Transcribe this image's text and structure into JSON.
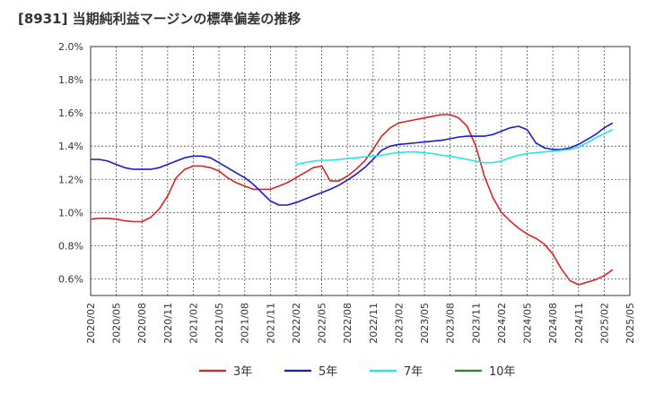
{
  "chart_data": {
    "type": "line",
    "title": "[8931]  当期純利益マージンの標準偏差の推移",
    "xlabel": "",
    "ylabel": "",
    "x_ticks": [
      "2020/02",
      "2020/05",
      "2020/08",
      "2020/11",
      "2021/02",
      "2021/05",
      "2021/08",
      "2021/11",
      "2022/02",
      "2022/05",
      "2022/08",
      "2022/11",
      "2023/02",
      "2023/05",
      "2023/08",
      "2023/11",
      "2024/02",
      "2024/05",
      "2024/08",
      "2024/11",
      "2025/02",
      "2025/05"
    ],
    "y_ticks": [
      "2.0%",
      "1.8%",
      "1.6%",
      "1.4%",
      "1.2%",
      "1.0%",
      "0.8%",
      "0.6%"
    ],
    "y_tick_values": [
      2.0,
      1.8,
      1.6,
      1.4,
      1.2,
      1.0,
      0.8,
      0.6
    ],
    "ylim": [
      0.5,
      2.0
    ],
    "x_start": "2020/02",
    "x_months": 63,
    "grid": true,
    "legend_position": "bottom",
    "series": [
      {
        "name": "3年",
        "color": "#dd2222",
        "start": "2020/02",
        "values": [
          0.96,
          0.965,
          0.965,
          0.96,
          0.95,
          0.945,
          0.945,
          0.97,
          1.02,
          1.1,
          1.21,
          1.26,
          1.28,
          1.28,
          1.27,
          1.25,
          1.21,
          1.18,
          1.16,
          1.14,
          1.14,
          1.14,
          1.16,
          1.18,
          1.21,
          1.24,
          1.27,
          1.28,
          1.19,
          1.19,
          1.22,
          1.26,
          1.31,
          1.38,
          1.46,
          1.51,
          1.54,
          1.55,
          1.56,
          1.57,
          1.58,
          1.59,
          1.59,
          1.57,
          1.52,
          1.4,
          1.22,
          1.09,
          1.0,
          0.95,
          0.905,
          0.87,
          0.845,
          0.81,
          0.75,
          0.66,
          0.59,
          0.565,
          0.58,
          0.595,
          0.62,
          0.655
        ]
      },
      {
        "name": "5年",
        "color": "#1a1acc",
        "start": "2020/02",
        "values": [
          1.32,
          1.32,
          1.31,
          1.29,
          1.27,
          1.26,
          1.26,
          1.26,
          1.27,
          1.29,
          1.31,
          1.33,
          1.34,
          1.34,
          1.33,
          1.3,
          1.27,
          1.24,
          1.21,
          1.17,
          1.12,
          1.07,
          1.045,
          1.045,
          1.06,
          1.08,
          1.1,
          1.12,
          1.14,
          1.165,
          1.195,
          1.23,
          1.27,
          1.32,
          1.375,
          1.4,
          1.41,
          1.415,
          1.42,
          1.425,
          1.43,
          1.435,
          1.445,
          1.455,
          1.46,
          1.46,
          1.46,
          1.47,
          1.49,
          1.51,
          1.52,
          1.5,
          1.42,
          1.39,
          1.38,
          1.38,
          1.39,
          1.41,
          1.44,
          1.47,
          1.51,
          1.54
        ]
      },
      {
        "name": "7年",
        "color": "#22e6e6",
        "start": "2022/02",
        "values": [
          1.29,
          1.3,
          1.31,
          1.315,
          1.315,
          1.32,
          1.325,
          1.33,
          1.335,
          1.34,
          1.345,
          1.355,
          1.36,
          1.365,
          1.365,
          1.36,
          1.355,
          1.345,
          1.34,
          1.33,
          1.32,
          1.31,
          1.3,
          1.3,
          1.31,
          1.33,
          1.345,
          1.355,
          1.36,
          1.365,
          1.37,
          1.375,
          1.38,
          1.395,
          1.42,
          1.45,
          1.475,
          1.5
        ]
      },
      {
        "name": "10年",
        "color": "#228822",
        "start": "2022/02",
        "values": []
      }
    ]
  }
}
